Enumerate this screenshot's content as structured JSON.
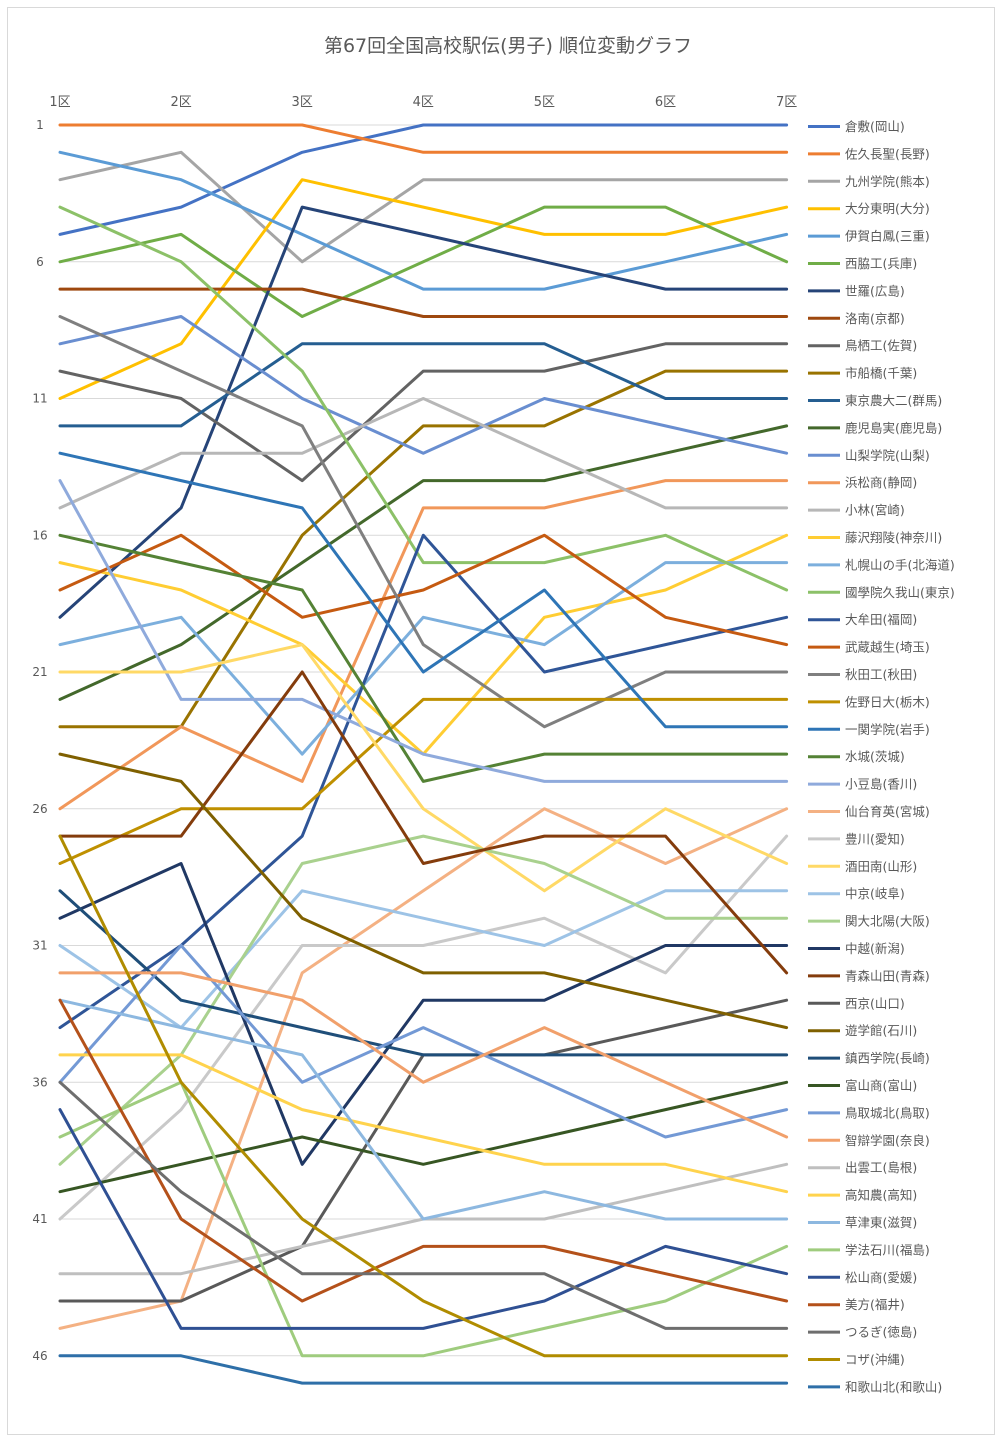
{
  "chart_data": {
    "type": "line",
    "title": "第67回全国高校駅伝(男子) 順位変動グラフ",
    "xlabel": "",
    "ylabel": "",
    "categories": [
      "1区",
      "2区",
      "3区",
      "4区",
      "5区",
      "6区",
      "7区"
    ],
    "ylim": [
      1,
      47
    ],
    "y_reversed": true,
    "y_ticks": [
      1,
      6,
      11,
      16,
      21,
      26,
      31,
      36,
      41,
      46
    ],
    "grid": "horizontal",
    "legend_position": "right",
    "series": [
      {
        "name": "倉敷(岡山)",
        "color": "#4472C4",
        "values": [
          5,
          4,
          2,
          1,
          1,
          1,
          1
        ]
      },
      {
        "name": "佐久長聖(長野)",
        "color": "#ED7D31",
        "values": [
          1,
          1,
          1,
          2,
          2,
          2,
          2
        ]
      },
      {
        "name": "九州学院(熊本)",
        "color": "#A5A5A5",
        "values": [
          3,
          2,
          6,
          3,
          3,
          3,
          3
        ]
      },
      {
        "name": "大分東明(大分)",
        "color": "#FFC000",
        "values": [
          11,
          9,
          3,
          4,
          5,
          5,
          4
        ]
      },
      {
        "name": "伊賀白鳳(三重)",
        "color": "#5B9BD5",
        "values": [
          2,
          3,
          5,
          7,
          7,
          6,
          5
        ]
      },
      {
        "name": "西脇工(兵庫)",
        "color": "#70AD47",
        "values": [
          6,
          5,
          8,
          6,
          4,
          4,
          6
        ]
      },
      {
        "name": "世羅(広島)",
        "color": "#264478",
        "values": [
          19,
          15,
          4,
          5,
          6,
          7,
          7
        ]
      },
      {
        "name": "洛南(京都)",
        "color": "#9E480E",
        "values": [
          7,
          7,
          7,
          8,
          8,
          8,
          8
        ]
      },
      {
        "name": "鳥栖工(佐賀)",
        "color": "#636363",
        "values": [
          10,
          11,
          14,
          10,
          10,
          9,
          9
        ]
      },
      {
        "name": "市船橋(千葉)",
        "color": "#997300",
        "values": [
          23,
          23,
          16,
          12,
          12,
          10,
          10
        ]
      },
      {
        "name": "東京農大二(群馬)",
        "color": "#255E91",
        "values": [
          12,
          12,
          9,
          9,
          9,
          11,
          11
        ]
      },
      {
        "name": "鹿児島実(鹿児島)",
        "color": "#43682B",
        "values": [
          22,
          20,
          17,
          14,
          14,
          13,
          12
        ]
      },
      {
        "name": "山梨学院(山梨)",
        "color": "#698ED0",
        "values": [
          9,
          8,
          11,
          13,
          11,
          12,
          13
        ]
      },
      {
        "name": "浜松商(静岡)",
        "color": "#F1975A",
        "values": [
          26,
          23,
          25,
          15,
          15,
          14,
          14
        ]
      },
      {
        "name": "小林(宮崎)",
        "color": "#B7B7B7",
        "values": [
          15,
          13,
          13,
          11,
          13,
          15,
          15
        ]
      },
      {
        "name": "藤沢翔陵(神奈川)",
        "color": "#FFCD33",
        "values": [
          17,
          18,
          20,
          24,
          19,
          18,
          16
        ]
      },
      {
        "name": "札幌山の手(北海道)",
        "color": "#7CAFDD",
        "values": [
          20,
          19,
          24,
          19,
          20,
          17,
          17
        ]
      },
      {
        "name": "國學院久我山(東京)",
        "color": "#8CC168",
        "values": [
          4,
          6,
          10,
          17,
          17,
          16,
          18
        ]
      },
      {
        "name": "大牟田(福岡)",
        "color": "#2F5597",
        "values": [
          34,
          31,
          27,
          16,
          21,
          20,
          19
        ]
      },
      {
        "name": "武蔵越生(埼玉)",
        "color": "#C55A11",
        "values": [
          18,
          16,
          19,
          18,
          16,
          19,
          20
        ]
      },
      {
        "name": "秋田工(秋田)",
        "color": "#7F7F7F",
        "values": [
          8,
          10,
          12,
          20,
          23,
          21,
          21
        ]
      },
      {
        "name": "佐野日大(栃木)",
        "color": "#BF9000",
        "values": [
          28,
          26,
          26,
          22,
          22,
          22,
          22
        ]
      },
      {
        "name": "一関学院(岩手)",
        "color": "#2E75B6",
        "values": [
          13,
          14,
          15,
          21,
          18,
          23,
          23
        ]
      },
      {
        "name": "水城(茨城)",
        "color": "#548235",
        "values": [
          16,
          17,
          18,
          25,
          24,
          24,
          24
        ]
      },
      {
        "name": "小豆島(香川)",
        "color": "#8FAADC",
        "values": [
          14,
          22,
          22,
          24,
          25,
          25,
          25
        ]
      },
      {
        "name": "仙台育英(宮城)",
        "color": "#F4B183",
        "values": [
          45,
          44,
          32,
          29,
          26,
          28,
          26
        ]
      },
      {
        "name": "豊川(愛知)",
        "color": "#C9C9C9",
        "values": [
          41,
          37,
          31,
          31,
          30,
          32,
          27
        ]
      },
      {
        "name": "酒田南(山形)",
        "color": "#FFD966",
        "values": [
          21,
          21,
          20,
          26,
          29,
          26,
          28
        ]
      },
      {
        "name": "中京(岐阜)",
        "color": "#9DC3E6",
        "values": [
          31,
          34,
          29,
          30,
          31,
          29,
          29
        ]
      },
      {
        "name": "関大北陽(大阪)",
        "color": "#A9D18E",
        "values": [
          39,
          35,
          28,
          27,
          28,
          30,
          30
        ]
      },
      {
        "name": "中越(新潟)",
        "color": "#203864",
        "values": [
          30,
          28,
          39,
          33,
          33,
          31,
          31
        ]
      },
      {
        "name": "青森山田(青森)",
        "color": "#843C0C",
        "values": [
          27,
          27,
          21,
          28,
          27,
          27,
          32
        ]
      },
      {
        "name": "西京(山口)",
        "color": "#595959",
        "values": [
          44,
          44,
          42,
          35,
          35,
          34,
          33
        ]
      },
      {
        "name": "遊学館(石川)",
        "color": "#7F6000",
        "values": [
          24,
          25,
          30,
          32,
          32,
          33,
          34
        ]
      },
      {
        "name": "鎮西学院(長崎)",
        "color": "#1F4E79",
        "values": [
          29,
          33,
          34,
          35,
          35,
          35,
          35
        ]
      },
      {
        "name": "富山商(富山)",
        "color": "#375623",
        "values": [
          40,
          39,
          38,
          39,
          38,
          37,
          36
        ]
      },
      {
        "name": "鳥取城北(鳥取)",
        "color": "#7399D5",
        "values": [
          36,
          31,
          36,
          34,
          36,
          38,
          37
        ]
      },
      {
        "name": "智辯学園(奈良)",
        "color": "#F1A06B",
        "values": [
          32,
          32,
          33,
          36,
          34,
          36,
          38
        ]
      },
      {
        "name": "出雲工(島根)",
        "color": "#BFBFBF",
        "values": [
          43,
          43,
          42,
          41,
          41,
          40,
          39
        ]
      },
      {
        "name": "高知農(高知)",
        "color": "#FFD34D",
        "values": [
          35,
          35,
          37,
          38,
          39,
          39,
          40
        ]
      },
      {
        "name": "草津東(滋賀)",
        "color": "#8DB8E0",
        "values": [
          33,
          34,
          35,
          41,
          40,
          41,
          41
        ]
      },
      {
        "name": "学法石川(福島)",
        "color": "#9FCC7E",
        "values": [
          38,
          36,
          46,
          46,
          45,
          44,
          42
        ]
      },
      {
        "name": "松山商(愛媛)",
        "color": "#2F5093",
        "values": [
          37,
          45,
          45,
          45,
          44,
          42,
          43
        ]
      },
      {
        "name": "美方(福井)",
        "color": "#B4511A",
        "values": [
          33,
          41,
          44,
          42,
          42,
          43,
          44
        ]
      },
      {
        "name": "つるぎ(徳島)",
        "color": "#6E6E6E",
        "values": [
          36,
          40,
          43,
          43,
          43,
          45,
          45
        ]
      },
      {
        "name": "コザ(沖縄)",
        "color": "#B08C00",
        "values": [
          27,
          36,
          41,
          44,
          46,
          46,
          46
        ]
      },
      {
        "name": "和歌山北(和歌山)",
        "color": "#2E6FA8",
        "values": [
          46,
          46,
          47,
          47,
          47,
          47,
          47
        ]
      }
    ]
  }
}
